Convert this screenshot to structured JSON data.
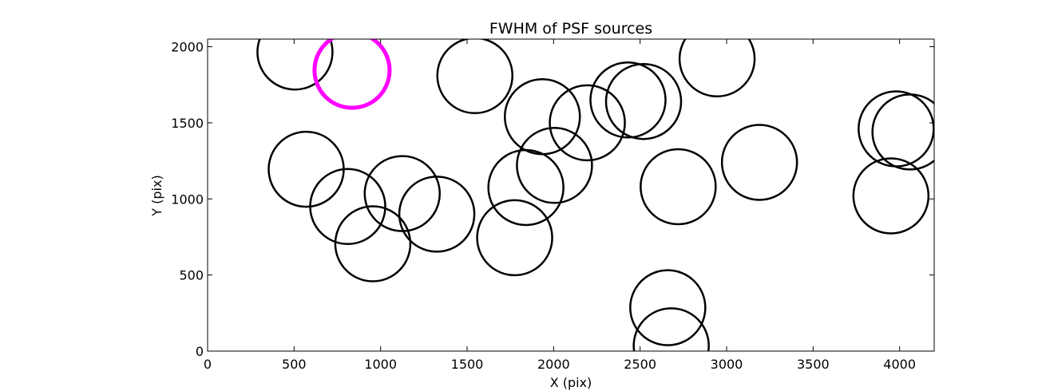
{
  "chart_data": {
    "type": "scatter",
    "title": "FWHM of PSF sources",
    "xlabel": "X (pix)",
    "ylabel": "Y (pix)",
    "xlim": [
      0,
      4200
    ],
    "ylim": [
      0,
      2050
    ],
    "xticks": [
      0,
      500,
      1000,
      1500,
      2000,
      2500,
      3000,
      3500,
      4000
    ],
    "yticks": [
      0,
      500,
      1000,
      1500,
      2000
    ],
    "grid": false,
    "marker": "open circle",
    "series": [
      {
        "color": "#000000",
        "points": [
          {
            "x": 505,
            "y": 1965
          },
          {
            "x": 1545,
            "y": 1810
          },
          {
            "x": 2945,
            "y": 1920
          },
          {
            "x": 1935,
            "y": 1540
          },
          {
            "x": 2195,
            "y": 1500
          },
          {
            "x": 2430,
            "y": 1650
          },
          {
            "x": 2520,
            "y": 1640
          },
          {
            "x": 3980,
            "y": 1460
          },
          {
            "x": 4060,
            "y": 1440
          },
          {
            "x": 570,
            "y": 1195
          },
          {
            "x": 2005,
            "y": 1220
          },
          {
            "x": 3190,
            "y": 1240
          },
          {
            "x": 1125,
            "y": 1035
          },
          {
            "x": 1840,
            "y": 1075
          },
          {
            "x": 2720,
            "y": 1080
          },
          {
            "x": 3950,
            "y": 1020
          },
          {
            "x": 810,
            "y": 950
          },
          {
            "x": 1325,
            "y": 900
          },
          {
            "x": 955,
            "y": 705
          },
          {
            "x": 1775,
            "y": 745
          },
          {
            "x": 2660,
            "y": 285
          },
          {
            "x": 2680,
            "y": 35
          }
        ]
      },
      {
        "color": "#ff00ff",
        "points": [
          {
            "x": 835,
            "y": 1845
          }
        ]
      }
    ]
  }
}
